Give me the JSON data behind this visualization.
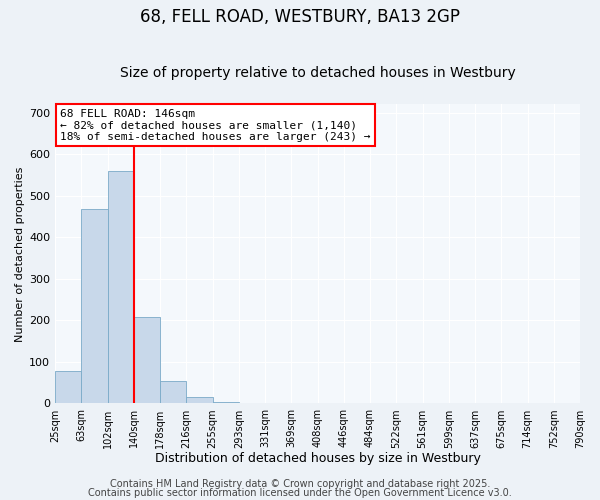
{
  "title": "68, FELL ROAD, WESTBURY, BA13 2GP",
  "subtitle": "Size of property relative to detached houses in Westbury",
  "xlabel": "Distribution of detached houses by size in Westbury",
  "ylabel": "Number of detached properties",
  "bar_heights": [
    78,
    467,
    560,
    207,
    55,
    15,
    3,
    0,
    0,
    0,
    0,
    0,
    0,
    0,
    0,
    0,
    0,
    0,
    0,
    0
  ],
  "bin_labels": [
    "25sqm",
    "63sqm",
    "102sqm",
    "140sqm",
    "178sqm",
    "216sqm",
    "255sqm",
    "293sqm",
    "331sqm",
    "369sqm",
    "408sqm",
    "446sqm",
    "484sqm",
    "522sqm",
    "561sqm",
    "599sqm",
    "637sqm",
    "675sqm",
    "714sqm",
    "752sqm",
    "790sqm"
  ],
  "bar_color": "#c8d8ea",
  "bar_edge_color": "#7aaac8",
  "property_line_x": 3,
  "property_line_color": "red",
  "annotation_line1": "68 FELL ROAD: 146sqm",
  "annotation_line2": "← 82% of detached houses are smaller (1,140)",
  "annotation_line3": "18% of semi-detached houses are larger (243) →",
  "annotation_box_facecolor": "white",
  "annotation_box_edgecolor": "red",
  "ylim": [
    0,
    720
  ],
  "yticks": [
    0,
    100,
    200,
    300,
    400,
    500,
    600,
    700
  ],
  "footer_line1": "Contains HM Land Registry data © Crown copyright and database right 2025.",
  "footer_line2": "Contains public sector information licensed under the Open Government Licence v3.0.",
  "background_color": "#edf2f7",
  "plot_background_color": "#f4f8fc",
  "grid_color": "white",
  "title_fontsize": 12,
  "subtitle_fontsize": 10,
  "annotation_fontsize": 8,
  "footer_fontsize": 7,
  "ylabel_fontsize": 8,
  "xlabel_fontsize": 9
}
